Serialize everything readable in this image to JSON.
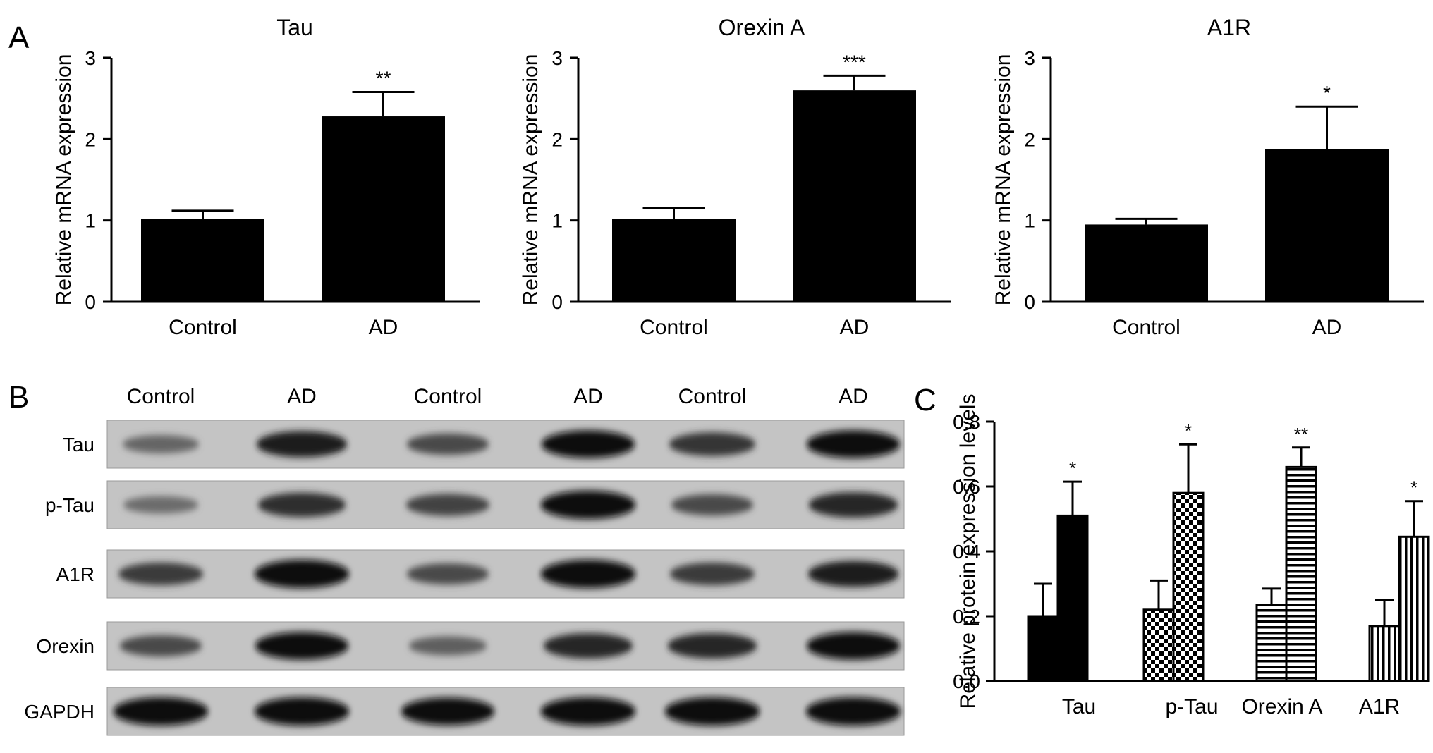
{
  "figure": {
    "panel_labels": [
      "A",
      "B",
      "C"
    ]
  },
  "chart_data": [
    {
      "id": "A1",
      "type": "bar",
      "title": "Tau",
      "ylabel": "Relative mRNA expression",
      "xlabel": "",
      "categories": [
        "Control",
        "AD"
      ],
      "values": [
        1.02,
        2.28
      ],
      "errors": [
        0.1,
        0.3
      ],
      "significance": [
        "",
        "**"
      ],
      "ylim": [
        0,
        3
      ],
      "yticks": [
        0,
        1,
        2,
        3
      ],
      "grid": false,
      "colors": [
        "#000000",
        "#000000"
      ]
    },
    {
      "id": "A2",
      "type": "bar",
      "title": "Orexin A",
      "ylabel": "Relative mRNA expression",
      "xlabel": "",
      "categories": [
        "Control",
        "AD"
      ],
      "values": [
        1.02,
        2.6
      ],
      "errors": [
        0.13,
        0.18
      ],
      "significance": [
        "",
        "***"
      ],
      "ylim": [
        0,
        3
      ],
      "yticks": [
        0,
        1,
        2,
        3
      ],
      "grid": false,
      "colors": [
        "#000000",
        "#000000"
      ]
    },
    {
      "id": "A3",
      "type": "bar",
      "title": "A1R",
      "ylabel": "Relative mRNA expression",
      "xlabel": "",
      "categories": [
        "Control",
        "AD"
      ],
      "values": [
        0.95,
        1.88
      ],
      "errors": [
        0.07,
        0.52
      ],
      "significance": [
        "",
        "*"
      ],
      "ylim": [
        0,
        3
      ],
      "yticks": [
        0,
        1,
        2,
        3
      ],
      "grid": false,
      "colors": [
        "#000000",
        "#000000"
      ]
    },
    {
      "id": "C",
      "type": "bar",
      "title": "",
      "ylabel": "Relative protein expression levels",
      "xlabel": "",
      "categories": [
        "Tau",
        "p-Tau",
        "Orexin A",
        "A1R"
      ],
      "series": [
        {
          "values": [
            0.2,
            0.22,
            0.235,
            0.17
          ],
          "errors": [
            0.1,
            0.09,
            0.05,
            0.08
          ]
        },
        {
          "values": [
            0.51,
            0.58,
            0.66,
            0.445
          ],
          "errors": [
            0.105,
            0.15,
            0.06,
            0.11
          ]
        }
      ],
      "significance": [
        "*",
        "*",
        "**",
        "*"
      ],
      "patterns": [
        "solid",
        "checker",
        "horizontal-stripes",
        "vertical-stripes"
      ],
      "ylim": [
        0,
        0.8
      ],
      "yticks": [
        "0.0",
        "0.2",
        "0.4",
        "0.6",
        "0.8"
      ],
      "grid": false
    }
  ],
  "western_blot": {
    "column_labels": [
      "Control",
      "AD",
      "Control",
      "AD",
      "Control",
      "AD"
    ],
    "rows": [
      {
        "label": "Tau",
        "intensities": [
          0.35,
          0.85,
          0.55,
          0.95,
          0.7,
          0.95
        ]
      },
      {
        "label": "p-Tau",
        "intensities": [
          0.3,
          0.75,
          0.6,
          1.0,
          0.55,
          0.8
        ]
      },
      {
        "label": "A1R",
        "intensities": [
          0.65,
          1.0,
          0.55,
          1.0,
          0.65,
          0.85
        ]
      },
      {
        "label": "Orexin",
        "intensities": [
          0.55,
          0.95,
          0.4,
          0.8,
          0.8,
          0.95
        ]
      },
      {
        "label": "GAPDH",
        "intensities": [
          1.0,
          1.0,
          0.95,
          1.0,
          1.0,
          1.0
        ]
      }
    ]
  }
}
